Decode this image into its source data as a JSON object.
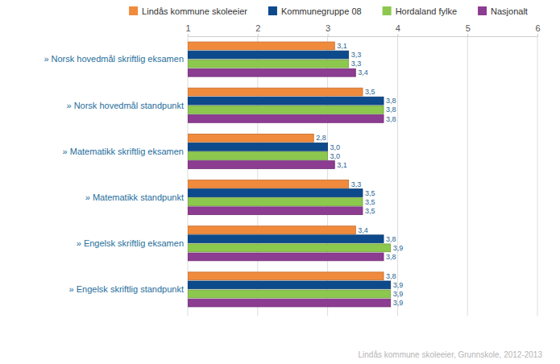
{
  "chart_data": {
    "type": "bar",
    "orientation": "horizontal",
    "categories": [
      "» Norsk hovedmål skriftlig eksamen",
      "» Norsk hovedmål standpunkt",
      "» Matematikk skriftlig eksamen",
      "» Matematikk standpunkt",
      "» Engelsk skriftlig eksamen",
      "» Engelsk skriftlig standpunkt"
    ],
    "series": [
      {
        "name": "Lindås kommune skoleeier",
        "color": "#f08a3c",
        "values": [
          3.1,
          3.5,
          2.8,
          3.3,
          3.4,
          3.8
        ],
        "value_labels": [
          "3,1",
          "3,5",
          "2,8",
          "3,3",
          "3,4",
          "3,8"
        ]
      },
      {
        "name": "Kommunegruppe 08",
        "color": "#0d4a8c",
        "values": [
          3.3,
          3.8,
          3.0,
          3.5,
          3.8,
          3.9
        ],
        "value_labels": [
          "3,3",
          "3,8",
          "3,0",
          "3,5",
          "3,8",
          "3,9"
        ]
      },
      {
        "name": "Hordaland fylke",
        "color": "#8cc84e",
        "values": [
          3.3,
          3.8,
          3.0,
          3.5,
          3.9,
          3.9
        ],
        "value_labels": [
          "3,3",
          "3,8",
          "3,0",
          "3,5",
          "3,9",
          "3,9"
        ]
      },
      {
        "name": "Nasjonalt",
        "color": "#8c3c91",
        "values": [
          3.4,
          3.8,
          3.1,
          3.5,
          3.8,
          3.9
        ],
        "value_labels": [
          "3,4",
          "3,8",
          "3,1",
          "3,5",
          "3,8",
          "3,9"
        ]
      }
    ],
    "xlim": [
      1,
      6
    ],
    "xticks": [
      1,
      2,
      3,
      4,
      5,
      6
    ],
    "grid": true,
    "data_labels": true,
    "legend": "top",
    "annotations": [
      "Lindås kommune skoleeier, Grunnskole, 2012-2013"
    ]
  }
}
